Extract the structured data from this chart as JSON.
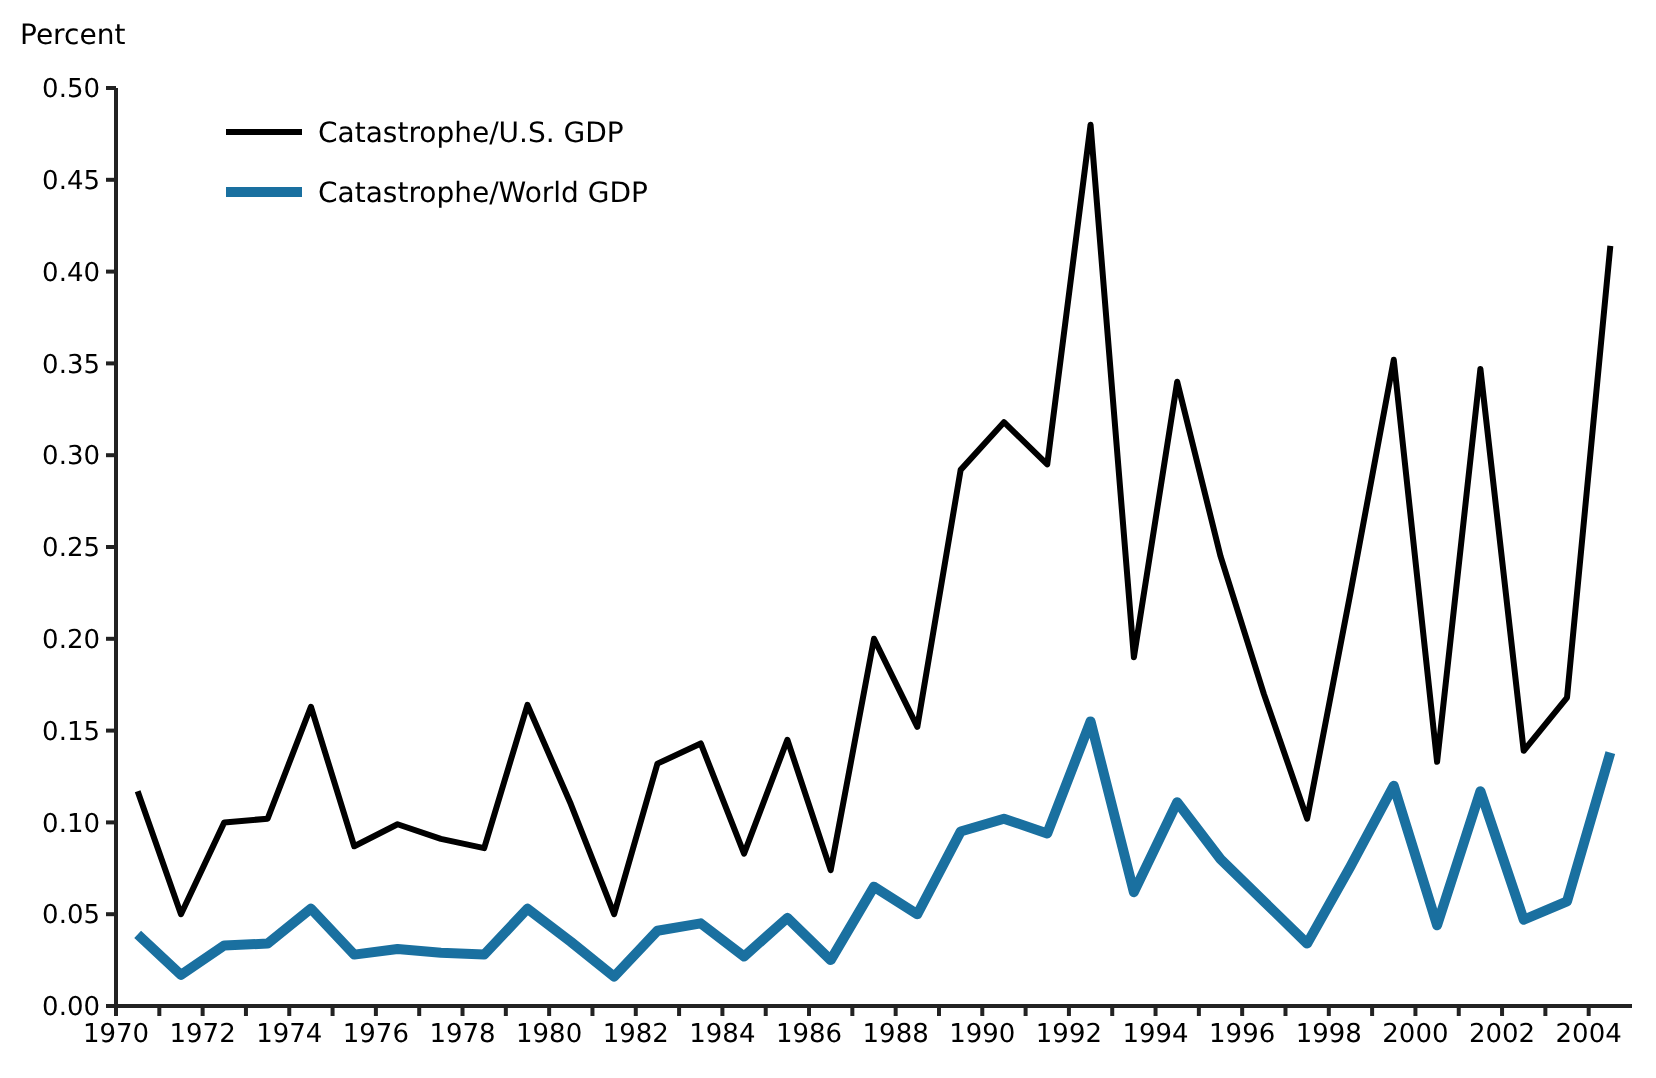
{
  "chart_data": {
    "type": "line",
    "ylabel": "Percent",
    "x": [
      1970.5,
      1971.5,
      1972.5,
      1973.5,
      1974.5,
      1975.5,
      1976.5,
      1977.5,
      1978.5,
      1979.5,
      1980.5,
      1981.5,
      1982.5,
      1983.5,
      1984.5,
      1985.5,
      1986.5,
      1987.5,
      1988.5,
      1989.5,
      1990.5,
      1991.5,
      1992.5,
      1993.5,
      1994.5,
      1995.5,
      1996.5,
      1997.5,
      1998.5,
      1999.5,
      2000.5,
      2001.5,
      2002.5,
      2003.5,
      2004.5
    ],
    "series": [
      {
        "name": "Catastrophe/U.S. GDP",
        "color": "#000000",
        "values": [
          0.117,
          0.05,
          0.1,
          0.102,
          0.163,
          0.087,
          0.099,
          0.091,
          0.086,
          0.164,
          0.11,
          0.05,
          0.132,
          0.143,
          0.083,
          0.145,
          0.074,
          0.2,
          0.152,
          0.292,
          0.318,
          0.295,
          0.48,
          0.19,
          0.34,
          0.245,
          0.17,
          0.102,
          0.225,
          0.352,
          0.133,
          0.347,
          0.139,
          0.168,
          0.414
        ]
      },
      {
        "name": "Catastrophe/World GDP",
        "color": "#1a70a0",
        "values": [
          0.039,
          0.017,
          0.033,
          0.034,
          0.053,
          0.028,
          0.031,
          0.029,
          0.028,
          0.053,
          0.035,
          0.016,
          0.041,
          0.045,
          0.027,
          0.048,
          0.025,
          0.065,
          0.05,
          0.095,
          0.102,
          0.094,
          0.155,
          0.062,
          0.111,
          0.08,
          0.057,
          0.034,
          0.076,
          0.12,
          0.044,
          0.117,
          0.047,
          0.057,
          0.138
        ]
      }
    ],
    "xlim": [
      1970,
      2005
    ],
    "xticks": [
      1970,
      {
        "value": 1971,
        "label": null
      },
      1972,
      {
        "value": 1973,
        "label": null
      },
      1974,
      {
        "value": 1975,
        "label": null
      },
      1976,
      {
        "value": 1977,
        "label": null
      },
      1978,
      {
        "value": 1979,
        "label": null
      },
      1980,
      {
        "value": 1981,
        "label": null
      },
      1982,
      {
        "value": 1983,
        "label": null
      },
      1984,
      {
        "value": 1985,
        "label": null
      },
      1986,
      {
        "value": 1987,
        "label": null
      },
      1988,
      {
        "value": 1989,
        "label": null
      },
      1990,
      {
        "value": 1991,
        "label": null
      },
      1992,
      {
        "value": 1993,
        "label": null
      },
      1994,
      {
        "value": 1995,
        "label": null
      },
      1996,
      {
        "value": 1997,
        "label": null
      },
      1998,
      {
        "value": 1999,
        "label": null
      },
      2000,
      {
        "value": 2001,
        "label": null
      },
      2002,
      {
        "value": 2003,
        "label": null
      },
      2004
    ],
    "ylim": [
      0,
      0.5
    ],
    "yticks": [
      {
        "value": 0,
        "label": "0.00"
      },
      {
        "value": 0.05,
        "label": "0.05"
      },
      {
        "value": 0.1,
        "label": "0.10"
      },
      {
        "value": 0.15,
        "label": "0.15"
      },
      {
        "value": 0.2,
        "label": "0.20"
      },
      {
        "value": 0.25,
        "label": "0.25"
      },
      {
        "value": 0.3,
        "label": "0.30"
      },
      {
        "value": 0.35,
        "label": "0.35"
      },
      {
        "value": 0.4,
        "label": "0.40"
      },
      {
        "value": 0.45,
        "label": "0.45"
      },
      {
        "value": 0.5,
        "label": "0.50"
      }
    ],
    "grid": false,
    "legend": "top left",
    "marker": "none",
    "line_style": "solid"
  }
}
